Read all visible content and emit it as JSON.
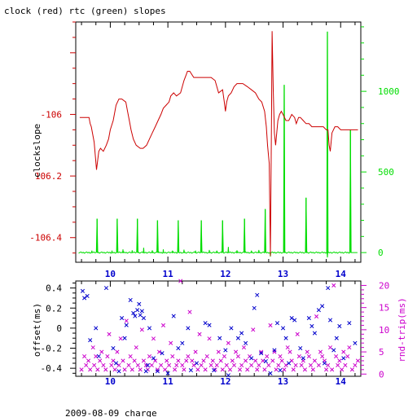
{
  "title": "clock (red) rtc (green) slopes",
  "footer": "2009-08-09 charge",
  "colors": {
    "red": "#cc0000",
    "green": "#00dd00",
    "blue": "#0000cc",
    "magenta": "#cc00cc",
    "black": "#000000"
  },
  "chart_data": [
    {
      "type": "line",
      "title": "clock (red) rtc (green) slopes",
      "xlabel": "",
      "xlim": [
        9.4,
        14.35
      ],
      "x_ticks": [
        "10",
        "11",
        "12",
        "13",
        "14"
      ],
      "ylabel": "clockslope",
      "ylim": [
        -106.48,
        -105.7
      ],
      "y_ticks": [
        "-106",
        "106.2",
        "-106.4"
      ],
      "y2lim": [
        -60,
        1430
      ],
      "y2_ticks": [
        "1000",
        "500",
        "0"
      ],
      "series": [
        {
          "name": "clock",
          "axis": "left",
          "color": "#cc0000",
          "x": [
            9.47,
            9.63,
            9.65,
            9.67,
            9.72,
            9.76,
            9.8,
            9.83,
            9.88,
            9.93,
            9.97,
            10.0,
            10.05,
            10.1,
            10.15,
            10.2,
            10.27,
            10.3,
            10.33,
            10.36,
            10.4,
            10.45,
            10.52,
            10.57,
            10.63,
            10.68,
            10.73,
            10.78,
            10.83,
            10.88,
            10.92,
            10.97,
            11.02,
            11.05,
            11.1,
            11.15,
            11.22,
            11.28,
            11.32,
            11.34,
            11.38,
            11.45,
            11.55,
            11.65,
            11.75,
            11.82,
            11.88,
            11.95,
            11.98,
            12.0,
            12.02,
            12.05,
            12.1,
            12.15,
            12.2,
            12.3,
            12.38,
            12.45,
            12.52,
            12.58,
            12.63,
            12.68,
            12.71,
            12.73,
            12.76,
            12.78,
            12.8,
            12.81,
            12.83,
            12.85,
            12.87,
            12.89,
            12.91,
            12.94,
            12.97,
            13.0,
            13.05,
            13.1,
            13.15,
            13.2,
            13.23,
            13.25,
            13.27,
            13.3,
            13.35,
            13.4,
            13.45,
            13.5,
            13.55,
            13.6,
            13.65,
            13.7,
            13.75,
            13.78,
            13.8,
            13.82,
            13.85,
            13.9,
            13.95,
            14.0,
            14.1,
            14.2,
            14.3
          ],
          "y": [
            -106.01,
            -106.01,
            -106.03,
            -106.04,
            -106.09,
            -106.18,
            -106.12,
            -106.11,
            -106.12,
            -106.1,
            -106.08,
            -106.05,
            -106.02,
            -105.97,
            -105.95,
            -105.95,
            -105.96,
            -105.99,
            -106.02,
            -106.05,
            -106.08,
            -106.1,
            -106.11,
            -106.11,
            -106.1,
            -106.08,
            -106.06,
            -106.04,
            -106.02,
            -106.0,
            -105.98,
            -105.97,
            -105.96,
            -105.94,
            -105.93,
            -105.94,
            -105.93,
            -105.89,
            -105.87,
            -105.86,
            -105.86,
            -105.88,
            -105.88,
            -105.88,
            -105.88,
            -105.89,
            -105.93,
            -105.92,
            -105.96,
            -105.99,
            -105.96,
            -105.94,
            -105.93,
            -105.91,
            -105.9,
            -105.9,
            -105.91,
            -105.92,
            -105.93,
            -105.95,
            -105.96,
            -105.99,
            -106.04,
            -106.1,
            -106.16,
            -106.46,
            -106.0,
            -105.73,
            -105.92,
            -106.06,
            -106.1,
            -106.06,
            -106.02,
            -106.0,
            -105.99,
            -106.0,
            -106.02,
            -106.02,
            -106.0,
            -106.01,
            -106.03,
            -106.02,
            -106.01,
            -106.01,
            -106.02,
            -106.03,
            -106.03,
            -106.04,
            -106.04,
            -106.04,
            -106.04,
            -106.04,
            -106.05,
            -106.05,
            -106.1,
            -106.12,
            -106.06,
            -106.04,
            -106.04,
            -106.05,
            -106.05,
            -106.05,
            -106.05
          ]
        },
        {
          "name": "rtc",
          "axis": "right",
          "color": "#00dd00",
          "baseline": 0,
          "spikes": [
            {
              "x": 9.77,
              "y": 210
            },
            {
              "x": 10.12,
              "y": 210
            },
            {
              "x": 10.47,
              "y": 210
            },
            {
              "x": 10.82,
              "y": 200
            },
            {
              "x": 11.18,
              "y": 200
            },
            {
              "x": 11.58,
              "y": 200
            },
            {
              "x": 11.95,
              "y": 200
            },
            {
              "x": 12.33,
              "y": 210
            },
            {
              "x": 12.69,
              "y": 270
            },
            {
              "x": 13.02,
              "y": 1040
            },
            {
              "x": 13.4,
              "y": 340
            },
            {
              "x": 13.77,
              "y": 1370
            },
            {
              "x": 14.17,
              "y": 760
            }
          ],
          "minor_spikes": [
            {
              "x": 9.68,
              "y": 12
            },
            {
              "x": 10.03,
              "y": 12
            },
            {
              "x": 10.22,
              "y": 20
            },
            {
              "x": 10.38,
              "y": 14
            },
            {
              "x": 10.58,
              "y": 30
            },
            {
              "x": 10.73,
              "y": 14
            },
            {
              "x": 10.92,
              "y": 20
            },
            {
              "x": 11.08,
              "y": 12
            },
            {
              "x": 11.28,
              "y": 18
            },
            {
              "x": 11.48,
              "y": 12
            },
            {
              "x": 11.72,
              "y": 16
            },
            {
              "x": 11.85,
              "y": 12
            },
            {
              "x": 12.05,
              "y": 35
            },
            {
              "x": 12.2,
              "y": 14
            },
            {
              "x": 12.45,
              "y": 12
            },
            {
              "x": 12.58,
              "y": 16
            },
            {
              "x": 12.78,
              "y": -25
            },
            {
              "x": 13.77,
              "y": -30
            }
          ]
        }
      ]
    },
    {
      "type": "scatter",
      "xlim": [
        9.4,
        14.35
      ],
      "x_ticks": [
        "10",
        "11",
        "12",
        "13",
        "14"
      ],
      "ylabel": "offset(ms)",
      "ylim": [
        -0.48,
        0.47
      ],
      "y_ticks": [
        "0.4",
        "0.2",
        "0",
        "-0.2",
        "-0.4"
      ],
      "y2label": "rnd-trip(ms)",
      "y2lim": [
        -0.5,
        21
      ],
      "y2_ticks": [
        "20",
        "15",
        "10",
        "5",
        "0"
      ],
      "series": [
        {
          "name": "offset",
          "axis": "left",
          "color": "#0000cc",
          "x": [
            9.52,
            9.55,
            9.6,
            9.65,
            9.75,
            9.8,
            9.93,
            10.05,
            10.1,
            10.15,
            10.2,
            10.25,
            10.28,
            10.35,
            10.4,
            10.43,
            10.47,
            10.5,
            10.52,
            10.55,
            10.58,
            10.62,
            10.65,
            10.68,
            10.75,
            10.82,
            10.9,
            11.0,
            11.1,
            11.18,
            11.25,
            11.35,
            11.4,
            11.5,
            11.65,
            11.72,
            11.8,
            11.9,
            12.0,
            12.05,
            12.1,
            12.22,
            12.28,
            12.35,
            12.45,
            12.5,
            12.55,
            12.62,
            12.7,
            12.78,
            12.85,
            12.9,
            12.95,
            13.0,
            13.05,
            13.1,
            13.15,
            13.2,
            13.3,
            13.35,
            13.45,
            13.5,
            13.55,
            13.62,
            13.68,
            13.72,
            13.78,
            13.82,
            13.88,
            13.93,
            13.98,
            14.05,
            14.15,
            14.25
          ],
          "y": [
            0.37,
            0.3,
            0.32,
            -0.12,
            0.0,
            -0.28,
            0.4,
            -0.2,
            -0.35,
            -0.43,
            0.1,
            -0.1,
            0.03,
            0.28,
            0.15,
            0.12,
            0.18,
            0.24,
            0.13,
            0.17,
            0.1,
            -0.43,
            -0.37,
            0.0,
            -0.3,
            -0.43,
            -0.25,
            -0.45,
            0.12,
            -0.2,
            -0.15,
            0.0,
            -0.42,
            -0.35,
            0.05,
            0.03,
            -0.42,
            -0.1,
            -0.22,
            -0.47,
            0.0,
            -0.1,
            -0.05,
            -0.15,
            -0.3,
            0.2,
            0.33,
            -0.25,
            -0.33,
            -0.45,
            -0.22,
            0.05,
            -0.42,
            0.0,
            -0.1,
            -0.35,
            0.1,
            0.08,
            -0.2,
            -0.3,
            0.1,
            0.02,
            -0.05,
            0.18,
            0.22,
            -0.35,
            0.4,
            0.08,
            -0.22,
            -0.1,
            0.02,
            -0.3,
            0.05,
            -0.15
          ]
        },
        {
          "name": "rnd-trip",
          "axis": "right",
          "color": "#cc00cc",
          "x": [
            9.5,
            9.55,
            9.58,
            9.62,
            9.65,
            9.7,
            9.72,
            9.75,
            9.78,
            9.82,
            9.85,
            9.88,
            9.92,
            9.95,
            9.98,
            10.02,
            10.05,
            10.08,
            10.12,
            10.15,
            10.18,
            10.22,
            10.25,
            10.28,
            10.32,
            10.35,
            10.38,
            10.42,
            10.45,
            10.48,
            10.52,
            10.55,
            10.58,
            10.62,
            10.65,
            10.68,
            10.72,
            10.75,
            10.78,
            10.82,
            10.85,
            10.88,
            10.92,
            10.95,
            10.98,
            11.02,
            11.05,
            11.08,
            11.12,
            11.15,
            11.18,
            11.22,
            11.25,
            11.28,
            11.32,
            11.35,
            11.38,
            11.42,
            11.45,
            11.48,
            11.52,
            11.55,
            11.58,
            11.62,
            11.65,
            11.68,
            11.72,
            11.75,
            11.78,
            11.82,
            11.85,
            11.88,
            11.92,
            11.95,
            11.98,
            12.02,
            12.05,
            12.08,
            12.12,
            12.15,
            12.18,
            12.22,
            12.25,
            12.28,
            12.32,
            12.35,
            12.38,
            12.42,
            12.45,
            12.48,
            12.52,
            12.55,
            12.58,
            12.62,
            12.65,
            12.68,
            12.72,
            12.75,
            12.78,
            12.82,
            12.85,
            12.88,
            12.92,
            12.95,
            12.98,
            13.02,
            13.05,
            13.08,
            13.12,
            13.15,
            13.18,
            13.22,
            13.25,
            13.28,
            13.32,
            13.35,
            13.38,
            13.42,
            13.45,
            13.48,
            13.52,
            13.55,
            13.58,
            13.62,
            13.65,
            13.68,
            13.72,
            13.75,
            13.78,
            13.82,
            13.85,
            13.88,
            13.92,
            13.95,
            13.98,
            14.02,
            14.05,
            14.08,
            14.12,
            14.15,
            14.2,
            14.25,
            14.3
          ],
          "y": [
            1,
            4,
            2,
            3,
            1,
            6,
            2,
            4,
            1,
            3,
            5,
            2,
            1,
            4,
            9,
            2,
            3,
            1,
            5,
            2,
            8,
            3,
            1,
            12,
            2,
            4,
            1,
            3,
            6,
            2,
            1,
            10,
            3,
            2,
            1,
            4,
            2,
            8,
            3,
            1,
            5,
            2,
            11,
            1,
            3,
            2,
            7,
            4,
            1,
            2,
            3,
            21,
            2,
            1,
            3,
            4,
            14,
            3,
            2,
            5,
            1,
            9,
            2,
            3,
            1,
            4,
            8,
            2,
            3,
            1,
            2,
            5,
            3,
            1,
            4,
            2,
            7,
            1,
            3,
            2,
            5,
            4,
            1,
            2,
            6,
            3,
            1,
            4,
            2,
            10,
            3,
            1,
            2,
            5,
            3,
            1,
            4,
            2,
            11,
            3,
            5,
            1,
            2,
            4,
            3,
            1,
            2,
            6,
            5,
            3,
            1,
            2,
            9,
            4,
            2,
            3,
            1,
            5,
            4,
            2,
            1,
            3,
            13,
            2,
            5,
            4,
            3,
            1,
            2,
            6,
            1,
            20,
            4,
            2,
            3,
            1,
            5,
            2,
            4,
            6,
            1,
            2,
            3
          ]
        }
      ]
    }
  ]
}
